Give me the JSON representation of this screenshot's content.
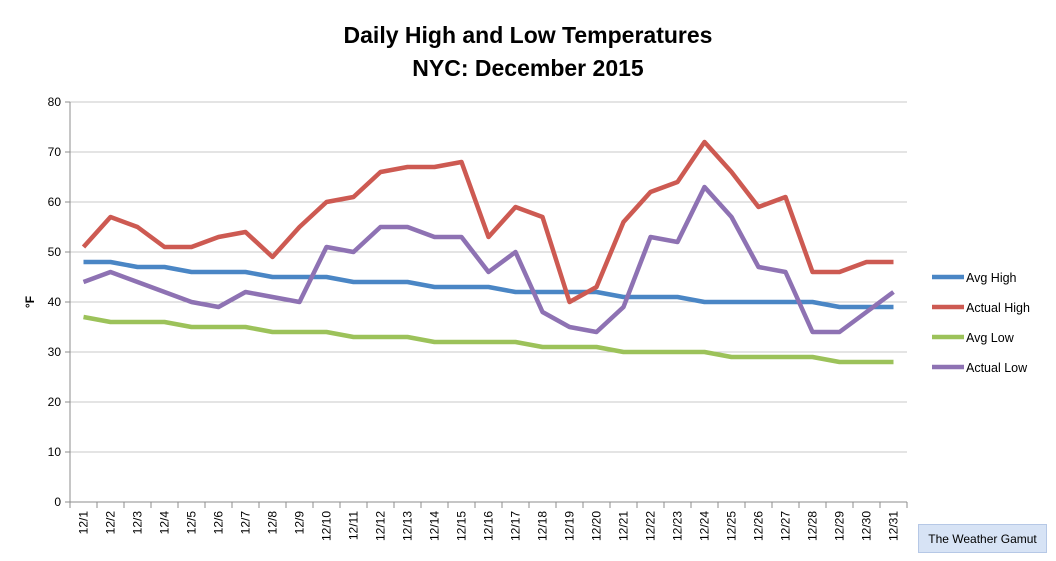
{
  "chart_data": {
    "type": "line",
    "title": [
      "Daily High and Low Temperatures",
      "NYC: December 2015"
    ],
    "ylabel": "°F",
    "xlabel": "",
    "ylim": [
      0,
      80
    ],
    "yticks": [
      0,
      10,
      20,
      30,
      40,
      50,
      60,
      70,
      80
    ],
    "grid": "horizontal",
    "legend": "right",
    "categories": [
      "12/1",
      "12/2",
      "12/3",
      "12/4",
      "12/5",
      "12/6",
      "12/7",
      "12/8",
      "12/9",
      "12/10",
      "12/11",
      "12/12",
      "12/13",
      "12/14",
      "12/15",
      "12/16",
      "12/17",
      "12/18",
      "12/19",
      "12/20",
      "12/21",
      "12/22",
      "12/23",
      "12/24",
      "12/25",
      "12/26",
      "12/27",
      "12/28",
      "12/29",
      "12/30",
      "12/31"
    ],
    "series": [
      {
        "name": "Avg High",
        "color": "#4a86c5",
        "values": [
          48,
          48,
          47,
          47,
          46,
          46,
          46,
          45,
          45,
          45,
          44,
          44,
          44,
          43,
          43,
          43,
          42,
          42,
          42,
          42,
          41,
          41,
          41,
          40,
          40,
          40,
          40,
          40,
          39,
          39,
          39
        ]
      },
      {
        "name": "Actual High",
        "color": "#cd5a52",
        "values": [
          51,
          57,
          55,
          51,
          51,
          53,
          54,
          49,
          55,
          60,
          61,
          66,
          67,
          67,
          68,
          53,
          59,
          57,
          40,
          43,
          56,
          62,
          64,
          72,
          66,
          59,
          61,
          46,
          46,
          48,
          48
        ]
      },
      {
        "name": "Avg Low",
        "color": "#9cc25a",
        "values": [
          37,
          36,
          36,
          36,
          35,
          35,
          35,
          34,
          34,
          34,
          33,
          33,
          33,
          32,
          32,
          32,
          32,
          31,
          31,
          31,
          30,
          30,
          30,
          30,
          29,
          29,
          29,
          29,
          28,
          28,
          28
        ]
      },
      {
        "name": "Actual Low",
        "color": "#8e72b3",
        "values": [
          44,
          46,
          44,
          42,
          40,
          39,
          42,
          41,
          40,
          51,
          50,
          55,
          55,
          53,
          53,
          46,
          50,
          38,
          35,
          34,
          39,
          53,
          52,
          63,
          57,
          47,
          46,
          34,
          34,
          38,
          42
        ]
      }
    ]
  },
  "watermark": "The Weather Gamut"
}
